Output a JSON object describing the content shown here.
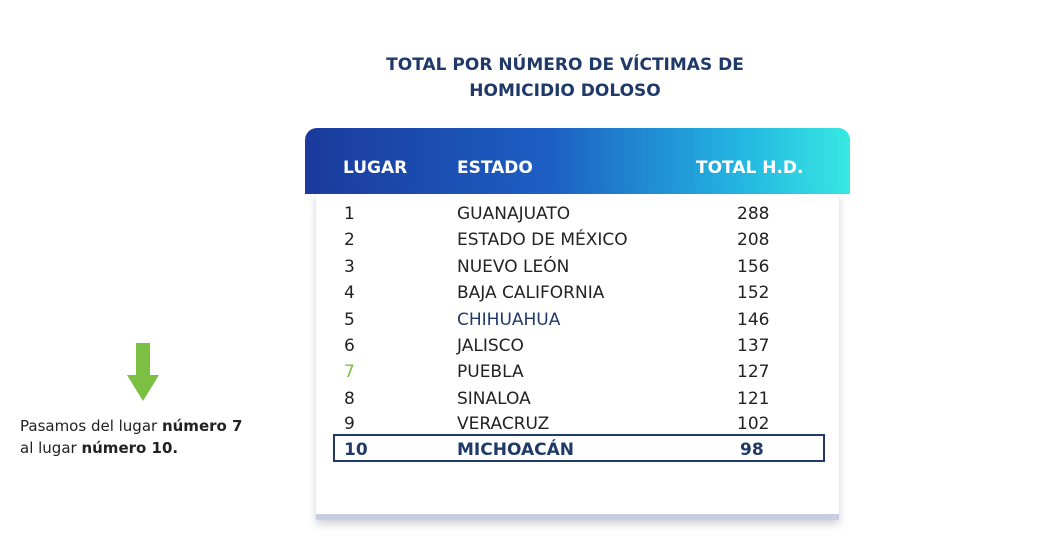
{
  "title": {
    "line1": "TOTAL POR NÚMERO DE VÍCTIMAS DE",
    "line2": "HOMICIDIO DOLOSO"
  },
  "table": {
    "headers": {
      "rank": "LUGAR",
      "state": "ESTADO",
      "total": "TOTAL H.D."
    },
    "rows": [
      {
        "rank": "1",
        "state": "GUANAJUATO",
        "total": "288"
      },
      {
        "rank": "2",
        "state": "ESTADO DE MÉXICO",
        "total": "208"
      },
      {
        "rank": "3",
        "state": "NUEVO LEÓN",
        "total": "156"
      },
      {
        "rank": "4",
        "state": "BAJA CALIFORNIA",
        "total": "152"
      },
      {
        "rank": "5",
        "state": "CHIHUAHUA",
        "total": "146"
      },
      {
        "rank": "6",
        "state": "JALISCO",
        "total": "137"
      },
      {
        "rank": "7",
        "state": "PUEBLA",
        "total": "127"
      },
      {
        "rank": "8",
        "state": "SINALOA",
        "total": "121"
      },
      {
        "rank": "9",
        "state": "VERACRUZ",
        "total": "102"
      },
      {
        "rank": "10",
        "state": "MICHOACÁN",
        "total": "98"
      }
    ]
  },
  "note": {
    "part1": "Pasamos del lugar ",
    "bold1": "número 7",
    "part2": "al lugar ",
    "bold2": "número 10."
  },
  "colors": {
    "title_navy": "#1f3a68",
    "arrow_green": "#7bc043",
    "header_gradient_start": "#1a3a9c",
    "header_gradient_end": "#37e8e2"
  },
  "icons": {
    "arrow": "down-arrow-icon"
  }
}
